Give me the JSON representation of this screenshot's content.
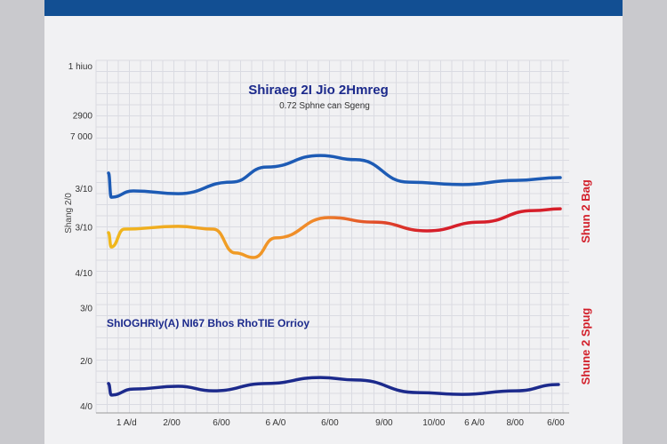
{
  "chart_data": {
    "type": "line",
    "title": "Shiraeg 2I Jio 2Hmreg",
    "subtitle": "0.72 Sphne can Sgeng",
    "annotation": "ShIOGHRIy(A) NI67 Bhos RhoTIE Orrioy",
    "ylabel": "Shang 2/0",
    "right_labels": [
      "Shun 2 Bag",
      "Shune 2 Spug"
    ],
    "y_ticks": [
      "1 hiuo",
      "2900",
      "7 000",
      "3/10",
      "3/10",
      "4/10",
      "3/0",
      "2/0",
      "4/0"
    ],
    "y_tick_values": [
      99,
      85,
      79,
      64,
      53,
      40,
      30,
      15,
      2
    ],
    "x_ticks": [
      "1 A/d",
      "2/00",
      "6/00",
      "6 A/0",
      "6/00",
      "9/00",
      "10/00",
      "6 A/0",
      "8/00",
      "6/00"
    ],
    "x_tick_values": [
      4,
      14,
      25,
      37,
      49,
      61,
      72,
      81,
      90,
      99
    ],
    "xlim": [
      0,
      100
    ],
    "ylim": [
      0,
      100
    ],
    "grid": true,
    "series": [
      {
        "name": "upper-blue",
        "color": "#1d5bb5",
        "x": [
          0,
          0.6,
          5.5,
          15.4,
          27.2,
          35,
          46.9,
          54.7,
          66.5,
          78.3,
          90.2,
          100
        ],
        "y": [
          68.4,
          61.5,
          63.3,
          62.5,
          65.8,
          70.1,
          73.4,
          72.2,
          65.8,
          65.1,
          66.3,
          67.1
        ]
      },
      {
        "name": "gradient",
        "colors": [
          "#f0b81c",
          "#f08a2a",
          "#d61f2a"
        ],
        "x": [
          0,
          0.6,
          3.5,
          15.4,
          23.2,
          28.1,
          32.1,
          37,
          48.8,
          58.7,
          70.5,
          82.3,
          94.1,
          100
        ],
        "y": [
          51.4,
          47.3,
          52.4,
          53.2,
          52.4,
          45.6,
          44.3,
          49.9,
          55.7,
          54.4,
          51.9,
          54.4,
          57.7,
          58.2
        ]
      },
      {
        "name": "lower-navy",
        "color": "#1c2a8c",
        "x": [
          0,
          0.6,
          5.5,
          15.4,
          23.2,
          35,
          46.9,
          54.7,
          68.5,
          78.3,
          90.2,
          99.6
        ],
        "y": [
          8.4,
          5.1,
          6.8,
          7.6,
          6.3,
          8.4,
          10.1,
          9.4,
          5.8,
          5.3,
          6.3,
          8.1
        ]
      }
    ]
  }
}
